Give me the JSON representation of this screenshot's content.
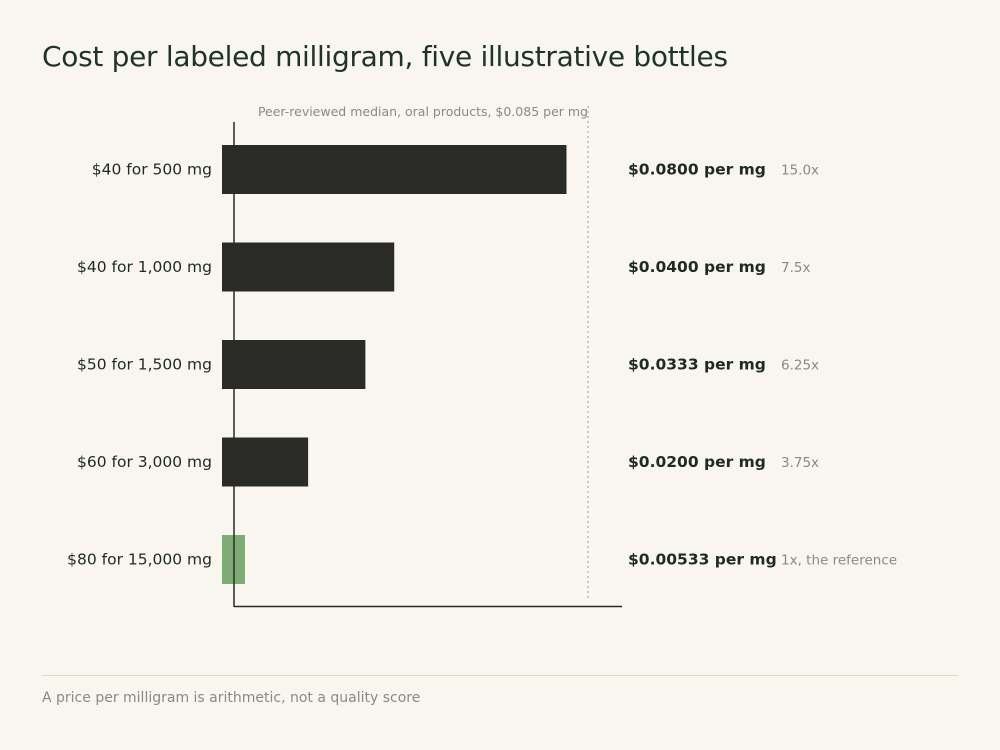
{
  "title": "Cost per labeled milligram, five illustrative bottles",
  "footer": "A price per milligram is arithmetic, not a quality score",
  "colors": {
    "bar": "#2a2b26",
    "bar_highlight": "#7fac74",
    "axis": "#2a2b26",
    "reference_line": "#9a9a94",
    "label": "#1f2a24",
    "muted": "#8a8a84"
  },
  "chart_data": {
    "type": "bar",
    "orientation": "horizontal",
    "categories": [
      "$40 for 500 mg",
      "$40 for 1,000 mg",
      "$50 for 1,500 mg",
      "$60 for 3,000 mg",
      "$80 for 15,000 mg"
    ],
    "values": [
      0.08,
      0.04,
      0.0333,
      0.02,
      0.00533
    ],
    "value_labels": [
      "$0.0800 per mg",
      "$0.0400 per mg",
      "$0.0333 per mg",
      "$0.0200 per mg",
      "$0.00533 per mg"
    ],
    "multiple_labels": [
      "15.0x",
      "7.5x",
      "6.25x",
      "3.75x",
      "1x, the reference"
    ],
    "highlight_index": 4,
    "reference": {
      "value": 0.085,
      "label": "Peer-reviewed median, oral products, $0.085 per mg"
    },
    "xlim": [
      0,
      0.09
    ],
    "grid": false,
    "legend": "none"
  }
}
